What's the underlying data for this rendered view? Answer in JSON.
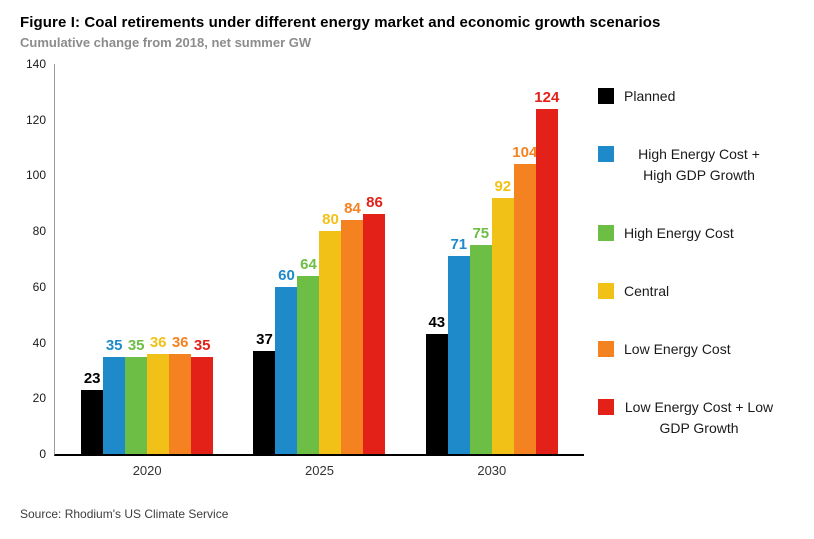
{
  "header": {
    "title": "Figure I: Coal retirements under different energy market and economic growth scenarios",
    "subtitle": "Cumulative change from 2018, net summer GW"
  },
  "chart_data": {
    "type": "bar",
    "title": "Figure I: Coal retirements under different energy market and economic growth scenarios",
    "subtitle": "Cumulative change from 2018, net summer GW",
    "categories": [
      "2020",
      "2025",
      "2030"
    ],
    "series": [
      {
        "name": "Planned",
        "color": "#000000",
        "values": [
          23,
          37,
          43
        ]
      },
      {
        "name": "High Energy Cost + High GDP Growth",
        "color": "#1f8ac9",
        "values": [
          35,
          60,
          71
        ]
      },
      {
        "name": "High Energy Cost",
        "color": "#6cbe45",
        "values": [
          35,
          64,
          75
        ]
      },
      {
        "name": "Central",
        "color": "#f2c118",
        "values": [
          36,
          80,
          92
        ]
      },
      {
        "name": "Low Energy Cost",
        "color": "#f58220",
        "values": [
          36,
          84,
          104
        ]
      },
      {
        "name": "Low Energy Cost + Low GDP Growth",
        "color": "#e32119",
        "values": [
          35,
          86,
          124
        ]
      }
    ],
    "ylim": [
      0,
      140
    ],
    "yticks": [
      0,
      20,
      40,
      60,
      80,
      100,
      120,
      140
    ],
    "grid": false,
    "legend_position": "right",
    "data_labels": true
  },
  "footer": {
    "source": "Source: Rhodium's US Climate Service"
  }
}
